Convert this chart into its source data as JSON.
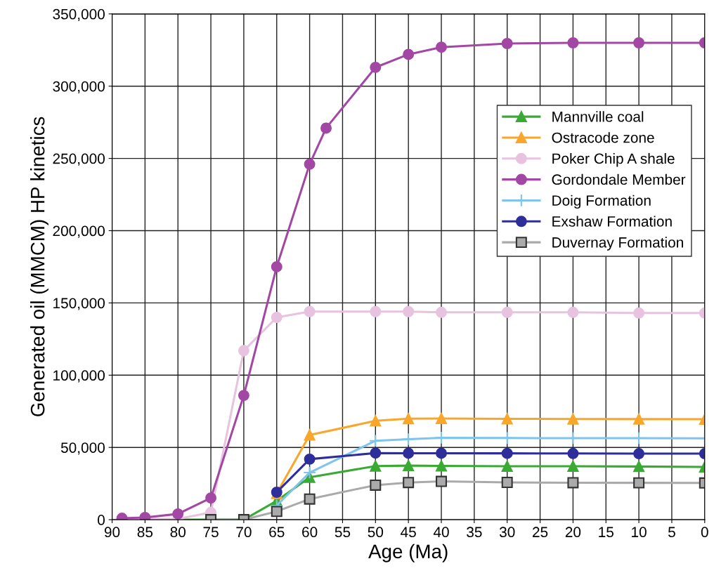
{
  "chart_data": {
    "type": "line",
    "xlabel": "Age (Ma)",
    "ylabel": "Generated oil (MMCM) HP kinetics",
    "xlim": [
      90,
      0
    ],
    "xticks": [
      90,
      85,
      80,
      75,
      70,
      65,
      60,
      55,
      50,
      45,
      40,
      35,
      30,
      25,
      20,
      15,
      10,
      5,
      0
    ],
    "ylim": [
      0,
      350000
    ],
    "yticks": [
      {
        "value": 0,
        "label": "0"
      },
      {
        "value": 50000,
        "label": "50,000"
      },
      {
        "value": 100000,
        "label": "100,000"
      },
      {
        "value": 150000,
        "label": "150,000"
      },
      {
        "value": 200000,
        "label": "200,000"
      },
      {
        "value": 250000,
        "label": "250,000"
      },
      {
        "value": 300000,
        "label": "300,000"
      },
      {
        "value": 350000,
        "label": "350,000"
      }
    ],
    "grid": true,
    "legend": "right",
    "line_style": "solid",
    "series": [
      {
        "name": "Mannville coal",
        "color": "#3aaa35",
        "marker": "triangle",
        "x": [
          88.5,
          85,
          80,
          75,
          70,
          65,
          60,
          50,
          45,
          40,
          30,
          20,
          10,
          0
        ],
        "values": [
          0,
          0,
          0,
          0,
          0,
          13000,
          29300,
          37100,
          37400,
          37200,
          37000,
          37000,
          36800,
          36500
        ]
      },
      {
        "name": "Ostracode zone",
        "color": "#f9a72b",
        "marker": "triangle",
        "x": [
          65,
          60,
          50,
          45,
          40,
          30,
          20,
          10,
          0
        ],
        "values": [
          18200,
          58600,
          68400,
          69900,
          70000,
          69800,
          69700,
          69600,
          69500
        ]
      },
      {
        "name": "Poker Chip A shale",
        "color": "#e8c3df",
        "marker": "circle",
        "x": [
          88.5,
          85,
          80,
          75,
          70,
          65,
          60,
          50,
          45,
          40,
          30,
          20,
          10,
          0
        ],
        "values": [
          500,
          500,
          500,
          5000,
          117000,
          140000,
          144000,
          144000,
          144000,
          143500,
          143500,
          143500,
          143000,
          143000
        ]
      },
      {
        "name": "Gordondale Member",
        "color": "#a347a5",
        "marker": "circle",
        "x": [
          88.5,
          85,
          80,
          75,
          70,
          65,
          60,
          57.5,
          50,
          45,
          40,
          30,
          20,
          10,
          0
        ],
        "values": [
          1000,
          1500,
          4000,
          15000,
          86000,
          175000,
          246000,
          271000,
          313000,
          322000,
          327000,
          329500,
          330000,
          330000,
          330000
        ]
      },
      {
        "name": "Doig Formation",
        "color": "#7ec4ec",
        "marker": "cross",
        "x": [
          65,
          60,
          50,
          45,
          40,
          30,
          20,
          10,
          0
        ],
        "values": [
          9800,
          32600,
          54600,
          55700,
          56700,
          56500,
          56400,
          56400,
          56300
        ]
      },
      {
        "name": "Exshaw Formation",
        "color": "#2e2e9a",
        "marker": "circle",
        "x": [
          65,
          60,
          50,
          45,
          40,
          30,
          20,
          10,
          0
        ],
        "values": [
          19000,
          41900,
          46100,
          46000,
          46000,
          45900,
          45800,
          45700,
          45700
        ]
      },
      {
        "name": "Duvernay Formation",
        "color": "#a9aaa9",
        "marker": "square",
        "x": [
          75,
          70,
          65,
          60,
          50,
          45,
          40,
          30,
          20,
          10,
          0
        ],
        "values": [
          0,
          0,
          5700,
          14300,
          23900,
          25700,
          26500,
          25800,
          25600,
          25500,
          25400
        ]
      }
    ]
  }
}
